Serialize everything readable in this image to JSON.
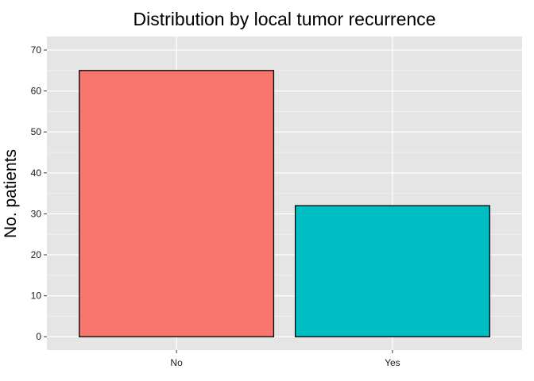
{
  "chart_data": {
    "type": "bar",
    "title": "Distribution by local tumor recurrence",
    "xlabel": "",
    "ylabel": "No. patients",
    "categories": [
      "No",
      "Yes"
    ],
    "values": [
      65,
      32
    ],
    "bar_colors": [
      "#F8766D",
      "#00BFC4"
    ],
    "bar_outline_color": "#000000",
    "panel_background": "#E5E5E5",
    "gridline_color": "#FFFFFF",
    "y_ticks": [
      0,
      10,
      20,
      30,
      40,
      50,
      60,
      70
    ],
    "ylim": [
      -3.25,
      73.3
    ],
    "grid": true,
    "legend": "none"
  }
}
